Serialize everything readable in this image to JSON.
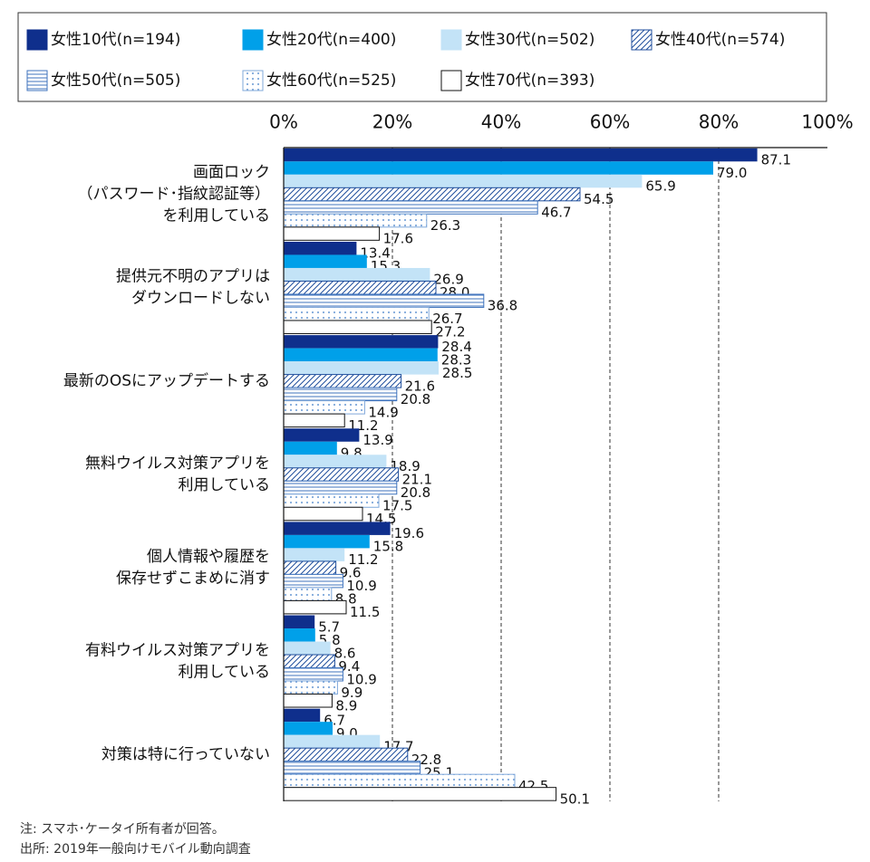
{
  "chart_data": {
    "type": "bar",
    "orientation": "horizontal",
    "categories": [
      "画面ロック\n（パスワード･指紋認証等）\nを利用している",
      "提供元不明のアプリは\nダウンロードしない",
      "最新のOSにアップデートする",
      "無料ウイルス対策アプリを\n利用している",
      "個人情報や履歴を\n保存せずこまめに消す",
      "有料ウイルス対策アプリを\n利用している",
      "対策は特に行っていない"
    ],
    "series": [
      {
        "name": "女性10代(n=194)",
        "color": "#0f2f8c",
        "pattern": "solid",
        "values": [
          87.1,
          13.4,
          28.4,
          13.9,
          19.6,
          5.7,
          6.7
        ],
        "value_labels": [
          "87.1",
          "13.4",
          "28.4",
          "13.9",
          "19.6",
          "5.7",
          "6.7"
        ]
      },
      {
        "name": "女性20代(n=400)",
        "color": "#00a0e9",
        "pattern": "solid",
        "values": [
          79.0,
          15.3,
          28.3,
          9.8,
          15.8,
          5.8,
          9.0
        ],
        "value_labels": [
          "79.0",
          "15.3",
          "28.3",
          "9.8",
          "15.8",
          "5.8",
          "9.0"
        ]
      },
      {
        "name": "女性30代(n=502)",
        "color": "#c3e3f7",
        "pattern": "solid",
        "values": [
          65.9,
          26.9,
          28.5,
          18.9,
          11.2,
          8.6,
          17.7
        ],
        "value_labels": [
          "65.9",
          "26.9",
          "28.5",
          "18.9",
          "11.2",
          "8.6",
          "17.7"
        ]
      },
      {
        "name": "女性40代(n=574)",
        "color": "#1f4e9c",
        "pattern": "diagonal",
        "values": [
          54.5,
          28.0,
          21.6,
          21.1,
          9.6,
          9.4,
          22.8
        ],
        "value_labels": [
          "54.5",
          "28.0",
          "21.6",
          "21.1",
          "9.6",
          "9.4",
          "22.8"
        ]
      },
      {
        "name": "女性50代(n=505)",
        "color": "#3f73bd",
        "pattern": "horizontal",
        "values": [
          46.7,
          36.8,
          20.8,
          20.8,
          10.9,
          10.9,
          25.1
        ],
        "value_labels": [
          "46.7",
          "36.8",
          "20.8",
          "20.8",
          "10.9",
          "10.9",
          "25.1"
        ]
      },
      {
        "name": "女性60代(n=525)",
        "color": "#7fa8da",
        "pattern": "dots",
        "values": [
          26.3,
          26.7,
          14.9,
          17.5,
          8.8,
          9.9,
          42.5
        ],
        "value_labels": [
          "26.3",
          "26.7",
          "14.9",
          "17.5",
          "8.8",
          "9.9",
          "42.5"
        ]
      },
      {
        "name": "女性70代(n=393)",
        "color": "#ffffff",
        "pattern": "solid",
        "values": [
          17.6,
          27.2,
          11.2,
          14.5,
          11.5,
          8.9,
          50.1
        ],
        "value_labels": [
          "17.6",
          "27.2",
          "11.2",
          "14.5",
          "11.5",
          "8.9",
          "50.1"
        ]
      }
    ],
    "xlim": [
      0,
      100
    ],
    "xticks": [
      {
        "value": 0,
        "label": "0%"
      },
      {
        "value": 20,
        "label": "20%"
      },
      {
        "value": 40,
        "label": "40%"
      },
      {
        "value": 60,
        "label": "60%"
      },
      {
        "value": 80,
        "label": "80%"
      },
      {
        "value": 100,
        "label": "100%"
      }
    ],
    "grid": true,
    "notes": [
      "注: スマホ･ケータイ所有者が回答。",
      "出所: 2019年一般向けモバイル動向調査"
    ]
  }
}
